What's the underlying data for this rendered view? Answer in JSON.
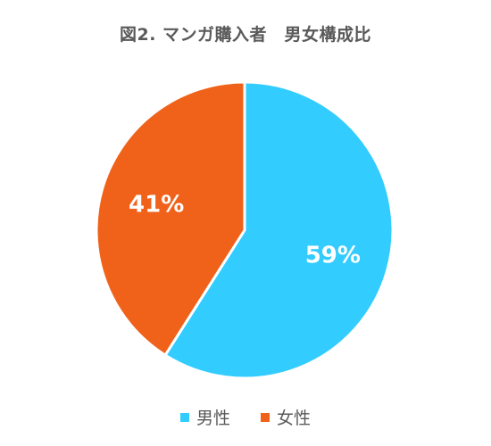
{
  "chart_data": {
    "type": "pie",
    "title": "図2. マンガ購入者　男女構成比",
    "categories": [
      "男性",
      "女性"
    ],
    "values": [
      59,
      41
    ],
    "data_labels": [
      "59%",
      "41%"
    ],
    "colors": [
      "#33CCFF",
      "#F0621A"
    ],
    "start_angle_deg": 0,
    "direction": "clockwise",
    "legend_position": "bottom"
  }
}
